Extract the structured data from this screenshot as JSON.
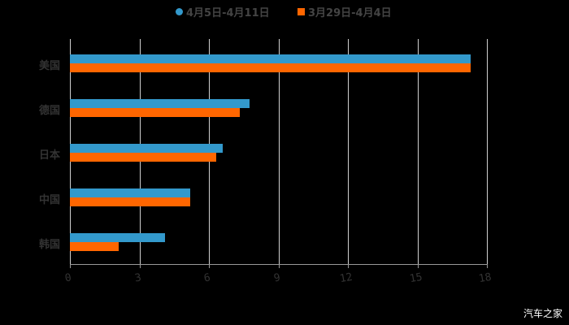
{
  "chart_data": {
    "type": "bar",
    "orientation": "horizontal",
    "title": "",
    "xlabel": "",
    "ylabel": "",
    "categories": [
      "美国",
      "德国",
      "日本",
      "中国",
      "韩国"
    ],
    "series": [
      {
        "name": "4月5日-4月11日",
        "color": "#3399cc",
        "values": [
          17.3,
          7.75,
          6.6,
          5.2,
          4.1
        ]
      },
      {
        "name": "3月29日-4月4日",
        "color": "#ff6600",
        "values": [
          17.3,
          7.35,
          6.3,
          5.2,
          2.1
        ]
      }
    ],
    "xlim": [
      0,
      18
    ],
    "xticks": [
      "0",
      "3",
      "6",
      "9",
      "12",
      "15",
      "18"
    ],
    "grid": true,
    "legend_position": "top"
  },
  "legend": [
    {
      "label": "4月5日-4月11日",
      "color": "#3399cc",
      "shape": "circle"
    },
    {
      "label": "3月29日-4月4日",
      "color": "#ff6600",
      "shape": "square"
    }
  ],
  "watermark": "汽车之家"
}
